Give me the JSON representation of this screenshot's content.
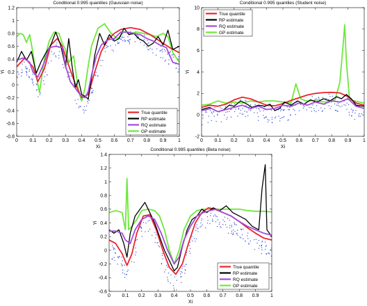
{
  "colors": {
    "true_quantile": "#e8242e",
    "rp_estimate": "#000000",
    "rq_estimate": "#a34bd9",
    "gp_estimate": "#6ee83a",
    "points": "#3b4fd8"
  },
  "chart_data": [
    {
      "type": "line",
      "title": "Conditional 0.995 quantiles (Gaussian noise)",
      "xlabel": "Xi",
      "ylabel": "Yi",
      "xlim": [
        0,
        1
      ],
      "ylim": [
        -0.8,
        1.2
      ],
      "xticks": [
        "0",
        "0.1",
        "0.2",
        "0.3",
        "0.4",
        "0.5",
        "0.6",
        "0.7",
        "0.8",
        "0.9",
        "1"
      ],
      "yticks": [
        "-0.8",
        "-0.6",
        "-0.4",
        "-0.2",
        "0",
        "0.2",
        "0.4",
        "0.6",
        "0.8",
        "1",
        "1.2"
      ],
      "legend": "bottom-right",
      "grid": false,
      "series": [
        {
          "name": "True quantile",
          "x": [
            0,
            0.05,
            0.1,
            0.13,
            0.17,
            0.21,
            0.25,
            0.28,
            0.32,
            0.36,
            0.4,
            0.44,
            0.48,
            0.52,
            0.56,
            0.6,
            0.64,
            0.7,
            0.76,
            0.82,
            0.88,
            0.94,
            1
          ],
          "y": [
            0.28,
            0.42,
            0.28,
            0.05,
            0.25,
            0.62,
            0.72,
            0.6,
            0.3,
            0.02,
            -0.2,
            -0.15,
            0.2,
            0.52,
            0.7,
            0.8,
            0.86,
            0.89,
            0.86,
            0.78,
            0.68,
            0.58,
            0.5
          ]
        },
        {
          "name": "RP estimate",
          "x": [
            0,
            0.03,
            0.06,
            0.09,
            0.12,
            0.15,
            0.18,
            0.21,
            0.24,
            0.27,
            0.3,
            0.32,
            0.34,
            0.36,
            0.38,
            0.4,
            0.42,
            0.44,
            0.46,
            0.48,
            0.51,
            0.54,
            0.57,
            0.6,
            0.63,
            0.66,
            0.69,
            0.72,
            0.75,
            0.78,
            0.81,
            0.84,
            0.87,
            0.9,
            0.93,
            0.96,
            1
          ],
          "y": [
            0.35,
            0.52,
            0.38,
            0.52,
            0.18,
            0.36,
            0.5,
            0.62,
            0.82,
            0.62,
            0.28,
            0.72,
            0.3,
            -0.05,
            0.08,
            -0.15,
            -0.18,
            -0.22,
            0.1,
            0.46,
            0.8,
            0.62,
            0.78,
            0.68,
            0.72,
            0.88,
            0.78,
            0.8,
            0.72,
            0.68,
            0.6,
            0.65,
            0.75,
            0.62,
            0.85,
            0.55,
            0.6
          ]
        },
        {
          "name": "RQ estimate",
          "x": [
            0,
            0.04,
            0.08,
            0.1,
            0.13,
            0.17,
            0.2,
            0.24,
            0.28,
            0.3,
            0.33,
            0.36,
            0.38,
            0.4,
            0.42,
            0.44,
            0.46,
            0.49,
            0.52,
            0.56,
            0.6,
            0.64,
            0.68,
            0.72,
            0.76,
            0.8,
            0.84,
            0.88,
            0.92,
            0.96,
            1
          ],
          "y": [
            0.38,
            0.42,
            0.35,
            0.2,
            0.12,
            0.35,
            0.58,
            0.6,
            0.58,
            0.3,
            0.05,
            -0.05,
            -0.12,
            -0.18,
            -0.2,
            -0.1,
            0.15,
            0.45,
            0.62,
            0.7,
            0.72,
            0.82,
            0.82,
            0.8,
            0.78,
            0.72,
            0.68,
            0.62,
            0.58,
            0.35,
            0.32
          ]
        },
        {
          "name": "GP estimate",
          "x": [
            0,
            0.02,
            0.04,
            0.06,
            0.08,
            0.1,
            0.12,
            0.14,
            0.17,
            0.2,
            0.23,
            0.26,
            0.28,
            0.3,
            0.32,
            0.35,
            0.38,
            0.4,
            0.42,
            0.44,
            0.46,
            0.5,
            0.54,
            0.58,
            0.62,
            0.66,
            0.7,
            0.74,
            0.78,
            0.82,
            0.86,
            0.9,
            0.93,
            0.96,
            1
          ],
          "y": [
            0.75,
            0.8,
            0.78,
            0.66,
            0.78,
            0.5,
            0.15,
            -0.12,
            0.4,
            0.68,
            0.82,
            0.8,
            0.65,
            0.55,
            0.35,
            0.45,
            -0.1,
            -0.25,
            -0.05,
            0.3,
            0.6,
            0.88,
            0.95,
            0.8,
            0.72,
            0.82,
            0.8,
            0.82,
            0.8,
            0.78,
            0.75,
            0.8,
            0.75,
            0.5,
            0.35
          ]
        }
      ]
    },
    {
      "type": "line",
      "title": "Conditional 0.995 quantiles (Student noise)",
      "xlabel": "Xi",
      "ylabel": "Yi",
      "xlim": [
        0,
        1
      ],
      "ylim": [
        -2,
        10
      ],
      "xticks": [
        "0",
        "0.1",
        "0.2",
        "0.3",
        "0.4",
        "0.5",
        "0.6",
        "0.7",
        "0.8",
        "0.9",
        "1"
      ],
      "yticks": [
        "-2",
        "0",
        "2",
        "4",
        "6",
        "8",
        "10"
      ],
      "legend": "top-left",
      "grid": false,
      "series": [
        {
          "name": "True quantile",
          "x": [
            0,
            0.05,
            0.1,
            0.15,
            0.2,
            0.25,
            0.3,
            0.35,
            0.4,
            0.45,
            0.5,
            0.55,
            0.6,
            0.65,
            0.7,
            0.75,
            0.8,
            0.85,
            0.9,
            0.95,
            1
          ],
          "y": [
            0.7,
            0.9,
            0.8,
            1.0,
            1.4,
            1.65,
            1.5,
            1.2,
            0.9,
            0.85,
            1.05,
            1.35,
            1.6,
            1.85,
            2.0,
            2.08,
            2.1,
            2.05,
            1.7,
            1.1,
            0.9
          ]
        },
        {
          "name": "RP estimate",
          "x": [
            0,
            0.05,
            0.1,
            0.13,
            0.17,
            0.2,
            0.24,
            0.28,
            0.31,
            0.35,
            0.39,
            0.42,
            0.45,
            0.48,
            0.51,
            0.55,
            0.59,
            0.63,
            0.67,
            0.71,
            0.75,
            0.79,
            0.83,
            0.86,
            0.89,
            0.92,
            0.95,
            1
          ],
          "y": [
            0.5,
            0.7,
            0.3,
            0.4,
            0.9,
            0.8,
            1.3,
            1.0,
            0.7,
            0.9,
            0.8,
            1.0,
            0.4,
            0.6,
            1.2,
            0.9,
            1.3,
            1.0,
            1.4,
            1.2,
            1.5,
            1.3,
            1.7,
            1.5,
            1.9,
            1.5,
            0.9,
            0.8
          ]
        },
        {
          "name": "RQ estimate",
          "x": [
            0,
            0.06,
            0.1,
            0.15,
            0.2,
            0.25,
            0.3,
            0.35,
            0.4,
            0.45,
            0.5,
            0.55,
            0.6,
            0.65,
            0.7,
            0.75,
            0.8,
            0.85,
            0.9,
            0.95,
            1
          ],
          "y": [
            0.4,
            0.6,
            0.3,
            0.5,
            0.7,
            0.9,
            0.6,
            0.8,
            0.5,
            0.6,
            0.9,
            0.8,
            1.1,
            0.9,
            1.2,
            1.0,
            1.3,
            1.2,
            1.5,
            0.8,
            0.6
          ]
        },
        {
          "name": "GP estimate",
          "x": [
            0,
            0.05,
            0.1,
            0.15,
            0.2,
            0.25,
            0.3,
            0.35,
            0.4,
            0.45,
            0.5,
            0.55,
            0.58,
            0.61,
            0.64,
            0.7,
            0.76,
            0.82,
            0.85,
            0.87,
            0.88,
            0.89,
            0.91,
            0.94,
            1
          ],
          "y": [
            0.9,
            1.0,
            1.3,
            1.1,
            1.2,
            1.1,
            1.3,
            1.2,
            1.3,
            1.3,
            1.2,
            1.1,
            2.9,
            1.5,
            1.3,
            1.3,
            1.2,
            1.4,
            3.0,
            6.5,
            8.4,
            5.0,
            1.4,
            1.3,
            1.1
          ]
        }
      ]
    },
    {
      "type": "line",
      "title": "Conditional 0.995 quantiles (Beta noise)",
      "xlabel": "Xi",
      "ylabel": "Yi",
      "xlim": [
        0,
        1
      ],
      "ylim": [
        -0.6,
        1.4
      ],
      "xticks": [
        "0",
        "0.1",
        "0.2",
        "0.3",
        "0.4",
        "0.5",
        "0.6",
        "0.7",
        "0.8",
        "0.9",
        "1"
      ],
      "yticks": [
        "-0.6",
        "-0.4",
        "-0.2",
        "0",
        "0.2",
        "0.4",
        "0.6",
        "0.8",
        "1",
        "1.2",
        "1.4"
      ],
      "legend": "bottom-right",
      "grid": false,
      "series": [
        {
          "name": "True quantile",
          "x": [
            0,
            0.04,
            0.08,
            0.11,
            0.14,
            0.17,
            0.21,
            0.25,
            0.29,
            0.33,
            0.37,
            0.41,
            0.45,
            0.49,
            0.53,
            0.57,
            0.61,
            0.65,
            0.7,
            0.75,
            0.8,
            0.85,
            0.9,
            0.95,
            1
          ],
          "y": [
            0.15,
            0.1,
            -0.05,
            -0.22,
            -0.05,
            0.25,
            0.5,
            0.52,
            0.3,
            0.0,
            -0.25,
            -0.35,
            -0.2,
            0.12,
            0.4,
            0.55,
            0.62,
            0.6,
            0.55,
            0.5,
            0.42,
            0.33,
            0.25,
            0.18,
            0.15
          ]
        },
        {
          "name": "RP estimate",
          "x": [
            0,
            0.03,
            0.06,
            0.09,
            0.11,
            0.13,
            0.16,
            0.19,
            0.22,
            0.25,
            0.28,
            0.31,
            0.34,
            0.37,
            0.4,
            0.42,
            0.45,
            0.48,
            0.51,
            0.54,
            0.57,
            0.6,
            0.64,
            0.68,
            0.72,
            0.76,
            0.8,
            0.84,
            0.88,
            0.92,
            0.94,
            0.96,
            0.97,
            1
          ],
          "y": [
            0.3,
            0.25,
            0.3,
            0.1,
            -0.1,
            0.25,
            0.5,
            0.6,
            0.7,
            0.55,
            0.4,
            0.2,
            0.0,
            -0.15,
            -0.3,
            -0.25,
            0.05,
            0.3,
            0.45,
            0.5,
            0.6,
            0.55,
            0.62,
            0.58,
            0.65,
            0.55,
            0.5,
            0.45,
            0.35,
            0.3,
            0.9,
            1.25,
            0.3,
            0.2
          ]
        },
        {
          "name": "RQ estimate",
          "x": [
            0,
            0.04,
            0.08,
            0.1,
            0.13,
            0.16,
            0.2,
            0.24,
            0.28,
            0.32,
            0.36,
            0.4,
            0.43,
            0.46,
            0.5,
            0.54,
            0.58,
            0.62,
            0.66,
            0.7,
            0.75,
            0.8,
            0.85,
            0.9,
            0.95,
            1
          ],
          "y": [
            0.28,
            0.28,
            0.25,
            0.15,
            0.1,
            0.3,
            0.45,
            0.5,
            0.45,
            0.25,
            0.0,
            -0.2,
            -0.1,
            0.15,
            0.35,
            0.5,
            0.55,
            0.58,
            0.6,
            0.55,
            0.5,
            0.42,
            0.35,
            0.3,
            0.25,
            0.22
          ]
        },
        {
          "name": "GP estimate",
          "x": [
            0,
            0.04,
            0.08,
            0.1,
            0.11,
            0.12,
            0.14,
            0.17,
            0.2,
            0.24,
            0.28,
            0.31,
            0.34,
            0.37,
            0.4,
            0.43,
            0.46,
            0.5,
            0.54,
            0.58,
            0.62,
            0.66,
            0.7,
            0.75,
            0.8,
            0.85,
            0.9,
            0.95,
            1
          ],
          "y": [
            0.55,
            0.58,
            0.55,
            0.3,
            1.05,
            0.3,
            0.35,
            0.45,
            0.58,
            0.6,
            0.58,
            0.5,
            0.3,
            0.0,
            -0.2,
            0.0,
            0.3,
            0.5,
            0.58,
            0.6,
            0.6,
            0.6,
            0.6,
            0.6,
            0.6,
            0.58,
            0.57,
            0.57,
            0.56
          ]
        }
      ]
    }
  ]
}
